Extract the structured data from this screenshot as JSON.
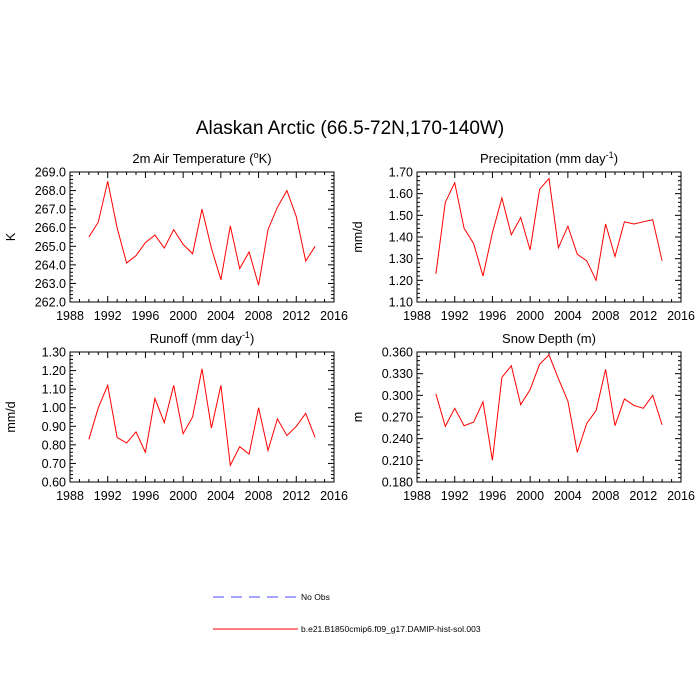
{
  "title": "Alaskan Arctic (66.5-72N,170-140W)",
  "colors": {
    "series": "#ff0000",
    "no_obs": "#4b4bff",
    "axis": "#000000"
  },
  "legend": {
    "placement": "bottom-center",
    "entries": [
      {
        "label": "No Obs",
        "style": "dashed",
        "color": "#4b4bff"
      },
      {
        "label": "b.e21.B1850cmip6.f09_g17.DAMIP-hist-sol.003",
        "style": "solid",
        "color": "#ff0000"
      }
    ]
  },
  "chart_data": [
    {
      "type": "line",
      "title": "2m Air Temperature (",
      "title_sup": "o",
      "title_end": "K)",
      "xlabel": "",
      "ylabel": "K",
      "xlim": [
        1988,
        2016
      ],
      "ylim": [
        262.0,
        269.0
      ],
      "xticks": [
        1988,
        1992,
        1996,
        2000,
        2004,
        2008,
        2012,
        2016
      ],
      "yticks": [
        "262.0",
        "263.0",
        "264.0",
        "265.0",
        "266.0",
        "267.0",
        "268.0",
        "269.0"
      ],
      "x": [
        1990,
        1991,
        1992,
        1993,
        1994,
        1995,
        1996,
        1997,
        1998,
        1999,
        2000,
        2001,
        2002,
        2003,
        2004,
        2005,
        2006,
        2007,
        2008,
        2009,
        2010,
        2011,
        2012,
        2013,
        2014
      ],
      "series": [
        {
          "values": [
            265.5,
            266.3,
            268.5,
            266.0,
            264.1,
            264.5,
            265.2,
            265.6,
            264.9,
            265.9,
            265.1,
            264.6,
            267.0,
            264.9,
            263.2,
            266.1,
            263.8,
            264.7,
            262.9,
            265.9,
            267.1,
            268.0,
            266.6,
            264.2,
            265.0
          ]
        }
      ]
    },
    {
      "type": "line",
      "title": "Precipitation (mm day",
      "title_sup": "-1",
      "title_end": ")",
      "xlabel": "",
      "ylabel": "mm/d",
      "xlim": [
        1988,
        2016
      ],
      "ylim": [
        1.1,
        1.7
      ],
      "xticks": [
        1988,
        1992,
        1996,
        2000,
        2004,
        2008,
        2012,
        2016
      ],
      "yticks": [
        "1.10",
        "1.20",
        "1.30",
        "1.40",
        "1.50",
        "1.60",
        "1.70"
      ],
      "x": [
        1990,
        1991,
        1992,
        1993,
        1994,
        1995,
        1996,
        1997,
        1998,
        1999,
        2000,
        2001,
        2002,
        2003,
        2004,
        2005,
        2006,
        2007,
        2008,
        2009,
        2010,
        2011,
        2012,
        2013,
        2014
      ],
      "series": [
        {
          "values": [
            1.23,
            1.56,
            1.65,
            1.44,
            1.37,
            1.22,
            1.42,
            1.58,
            1.41,
            1.49,
            1.34,
            1.62,
            1.67,
            1.35,
            1.45,
            1.32,
            1.29,
            1.2,
            1.46,
            1.31,
            1.47,
            1.46,
            1.47,
            1.48,
            1.29
          ]
        }
      ]
    },
    {
      "type": "line",
      "title": "Runoff (mm day",
      "title_sup": "-1",
      "title_end": ")",
      "xlabel": "",
      "ylabel": "mm/d",
      "xlim": [
        1988,
        2016
      ],
      "ylim": [
        0.6,
        1.3
      ],
      "xticks": [
        1988,
        1992,
        1996,
        2000,
        2004,
        2008,
        2012,
        2016
      ],
      "yticks": [
        "0.60",
        "0.70",
        "0.80",
        "0.90",
        "1.00",
        "1.10",
        "1.20",
        "1.30"
      ],
      "x": [
        1990,
        1991,
        1992,
        1993,
        1994,
        1995,
        1996,
        1997,
        1998,
        1999,
        2000,
        2001,
        2002,
        2003,
        2004,
        2005,
        2006,
        2007,
        2008,
        2009,
        2010,
        2011,
        2012,
        2013,
        2014
      ],
      "series": [
        {
          "values": [
            0.83,
            1.0,
            1.12,
            0.84,
            0.81,
            0.87,
            0.76,
            1.05,
            0.92,
            1.12,
            0.86,
            0.95,
            1.21,
            0.89,
            1.12,
            0.69,
            0.79,
            0.75,
            1.0,
            0.77,
            0.94,
            0.85,
            0.9,
            0.97,
            0.84
          ]
        }
      ]
    },
    {
      "type": "line",
      "title": "Snow Depth (m)",
      "title_sup": "",
      "title_end": "",
      "xlabel": "",
      "ylabel": "m",
      "xlim": [
        1988,
        2016
      ],
      "ylim": [
        0.18,
        0.36
      ],
      "xticks": [
        1988,
        1992,
        1996,
        2000,
        2004,
        2008,
        2012,
        2016
      ],
      "yticks": [
        "0.180",
        "0.210",
        "0.240",
        "0.270",
        "0.300",
        "0.330",
        "0.360"
      ],
      "x": [
        1990,
        1991,
        1992,
        1993,
        1994,
        1995,
        1996,
        1997,
        1998,
        1999,
        2000,
        2001,
        2002,
        2003,
        2004,
        2005,
        2006,
        2007,
        2008,
        2009,
        2010,
        2011,
        2012,
        2013,
        2014
      ],
      "series": [
        {
          "values": [
            0.302,
            0.257,
            0.282,
            0.258,
            0.263,
            0.291,
            0.21,
            0.325,
            0.341,
            0.287,
            0.308,
            0.343,
            0.356,
            0.323,
            0.292,
            0.221,
            0.261,
            0.279,
            0.336,
            0.258,
            0.295,
            0.286,
            0.282,
            0.3,
            0.259
          ]
        }
      ]
    }
  ]
}
